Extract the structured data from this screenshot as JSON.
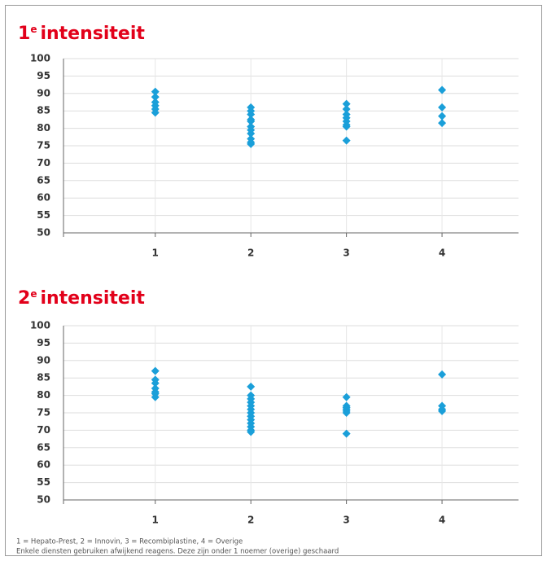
{
  "chart_data": [
    {
      "type": "scatter",
      "title_number": "1",
      "title_superscript": "e",
      "title_text": "intensiteit",
      "xlim": [
        0.04,
        4.8
      ],
      "xticks": [
        1,
        2,
        3,
        4
      ],
      "ylim": [
        50,
        100
      ],
      "yticks": [
        50,
        55,
        60,
        65,
        70,
        75,
        80,
        85,
        90,
        95,
        100
      ],
      "grid": true,
      "series": [
        {
          "color": "#1a9fd9",
          "x": [
            1,
            1,
            1,
            1,
            1,
            1,
            2,
            2,
            2,
            2,
            2,
            2,
            2,
            2,
            2,
            2,
            2,
            3,
            3,
            3,
            3,
            3,
            3,
            3,
            3,
            4,
            4,
            4,
            4
          ],
          "y": [
            90.5,
            89,
            87.5,
            86.5,
            85.5,
            84.5,
            86,
            85,
            84,
            82.5,
            82,
            80.5,
            79.5,
            78.5,
            77,
            76,
            75.5,
            87,
            85.5,
            84,
            83,
            82,
            81,
            80.5,
            76.5,
            91,
            86,
            83.5,
            81.5
          ]
        }
      ]
    },
    {
      "type": "scatter",
      "title_number": "2",
      "title_superscript": "e",
      "title_text": "intensiteit",
      "xlim": [
        0.04,
        4.8
      ],
      "xticks": [
        1,
        2,
        3,
        4
      ],
      "ylim": [
        50,
        100
      ],
      "yticks": [
        50,
        55,
        60,
        65,
        70,
        75,
        80,
        85,
        90,
        95,
        100
      ],
      "grid": true,
      "series": [
        {
          "color": "#1a9fd9",
          "x": [
            1,
            1,
            1,
            1,
            1,
            1,
            1,
            2,
            2,
            2,
            2,
            2,
            2,
            2,
            2,
            2,
            2,
            2,
            2,
            2,
            3,
            3,
            3,
            3,
            3,
            3,
            3,
            4,
            4,
            4,
            4
          ],
          "y": [
            87,
            84.5,
            83.5,
            82,
            81,
            80.5,
            79.5,
            82.5,
            80,
            79,
            78,
            77,
            76,
            75,
            74,
            73,
            72,
            71,
            70,
            69.5,
            79.5,
            77,
            76.5,
            76,
            75.5,
            75,
            69,
            86,
            77,
            76,
            75.5
          ]
        }
      ]
    }
  ],
  "notes": [
    "1 = Hepato-Prest, 2 = Innovin, 3 = Recombiplastine, 4 = Overige",
    "Enkele diensten gebruiken afwijkend reagens. Deze zijn onder 1 noemer (overige) geschaard"
  ]
}
